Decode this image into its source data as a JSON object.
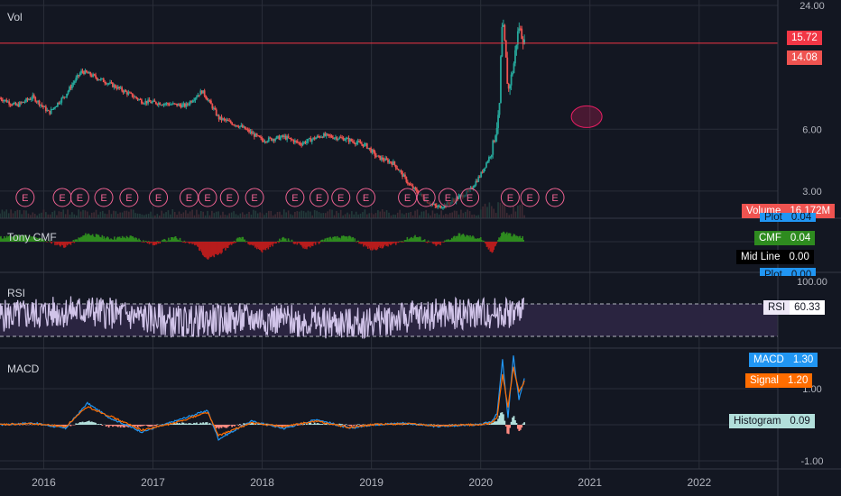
{
  "panes": {
    "vol": {
      "title": "Vol"
    },
    "cmf": {
      "title": "Tony CMF"
    },
    "rsi": {
      "title": "RSI"
    },
    "macd": {
      "title": "MACD"
    }
  },
  "price_axis": {
    "vol_ticks": [
      "24.00",
      "6.00",
      "3.00"
    ],
    "rsi_ticks": [
      "100.00"
    ],
    "macd_ticks": [
      "1.00",
      "-1.00"
    ]
  },
  "tags": {
    "last_price": "15.72",
    "high_price": "14.08",
    "volume": {
      "label": "Volume",
      "value": "16.172M"
    },
    "cmf_plot_top": {
      "label": "Plot",
      "value": "0.04"
    },
    "cmf": {
      "label": "CMF",
      "value": "0.04"
    },
    "mid_line": {
      "label": "Mid Line",
      "value": "0.00"
    },
    "cmf_plot_bottom": {
      "label": "Plot",
      "value": "0.00"
    },
    "rsi": {
      "label": "RSI",
      "value": "60.33"
    },
    "macd": {
      "label": "MACD",
      "value": "1.30"
    },
    "signal": {
      "label": "Signal",
      "value": "1.20"
    },
    "histogram": {
      "label": "Histogram",
      "value": "0.09"
    }
  },
  "time_axis": [
    "2016",
    "2017",
    "2018",
    "2019",
    "2020",
    "2021",
    "2022"
  ],
  "earnings_marker": "E",
  "colors": {
    "background": "#131722",
    "grid": "#2a2e39",
    "up": "#26a69a",
    "down": "#ef5350",
    "last_price_line": "#f23645",
    "cmf_positive": "#2e8b1f",
    "cmf_negative": "#b71c1c",
    "rsi_line": "#d1c4e9",
    "rsi_band": "#2a2440",
    "macd_line": "#2196f3",
    "signal_line": "#ff6d00",
    "histogram": "#b2dfdb"
  },
  "chart_data": [
    {
      "type": "line",
      "title": "Vol",
      "x": [
        "2015.6",
        "2015.75",
        "2015.9",
        "2016.05",
        "2016.2",
        "2016.35",
        "2016.5",
        "2016.7",
        "2016.9",
        "2017.1",
        "2017.3",
        "2017.45",
        "2017.6",
        "2017.8",
        "2018.0",
        "2018.2",
        "2018.35",
        "2018.55",
        "2018.75",
        "2018.95",
        "2019.05",
        "2019.2",
        "2019.35",
        "2019.5",
        "2019.6",
        "2019.7",
        "2019.8",
        "2019.9",
        "2020.0",
        "2020.1",
        "2020.17",
        "2020.2",
        "2020.25",
        "2020.3",
        "2020.35",
        "2020.4"
      ],
      "values": [
        8.5,
        7.8,
        8.6,
        7.2,
        8.8,
        11.5,
        10.6,
        9.4,
        8.2,
        8.0,
        7.8,
        9.2,
        6.8,
        6.2,
        5.3,
        5.5,
        5.1,
        5.6,
        5.4,
        5.0,
        4.4,
        4.1,
        3.2,
        2.7,
        2.5,
        2.6,
        2.8,
        3.0,
        3.6,
        4.6,
        7.0,
        20.0,
        9.0,
        12.0,
        19.0,
        15.7
      ],
      "ylim": [
        2.4,
        24
      ],
      "scale": "log",
      "ticks": [
        24,
        6,
        3
      ]
    },
    {
      "type": "area",
      "title": "Tony CMF",
      "x": [
        "2015.6",
        "2015.8",
        "2016.0",
        "2016.2",
        "2016.4",
        "2016.6",
        "2016.8",
        "2017.0",
        "2017.2",
        "2017.4",
        "2017.5",
        "2017.6",
        "2017.8",
        "2018.0",
        "2018.2",
        "2018.4",
        "2018.6",
        "2018.8",
        "2019.0",
        "2019.2",
        "2019.4",
        "2019.6",
        "2019.8",
        "2020.0",
        "2020.1",
        "2020.2",
        "2020.3",
        "2020.4"
      ],
      "values": [
        0.05,
        0.08,
        0.02,
        -0.06,
        0.1,
        0.04,
        0.06,
        -0.03,
        0.05,
        -0.05,
        -0.22,
        -0.16,
        0.06,
        -0.12,
        0.05,
        -0.08,
        0.04,
        0.06,
        -0.1,
        -0.03,
        0.07,
        -0.05,
        0.09,
        0.04,
        -0.14,
        0.12,
        0.08,
        0.04
      ],
      "ylim": [
        -0.3,
        0.3
      ]
    },
    {
      "type": "line",
      "title": "RSI",
      "x": [
        "2015.6",
        "2016.4",
        "2017.2",
        "2018.0",
        "2018.8",
        "2019.6",
        "2020.4"
      ],
      "values": [
        55,
        62,
        48,
        52,
        45,
        58,
        60.33
      ],
      "ylim": [
        20,
        100
      ],
      "bands": [
        30,
        70
      ]
    },
    {
      "type": "line",
      "title": "MACD",
      "x": [
        "2015.6",
        "2015.9",
        "2016.2",
        "2016.4",
        "2016.6",
        "2016.9",
        "2017.2",
        "2017.5",
        "2017.6",
        "2017.9",
        "2018.2",
        "2018.5",
        "2018.8",
        "2019.0",
        "2019.3",
        "2019.6",
        "2019.9",
        "2020.0",
        "2020.1",
        "2020.15",
        "2020.2",
        "2020.25",
        "2020.3",
        "2020.35",
        "2020.4"
      ],
      "series": [
        {
          "name": "MACD",
          "values": [
            0.0,
            0.05,
            -0.1,
            0.6,
            0.2,
            -0.2,
            0.1,
            0.4,
            -0.4,
            0.1,
            -0.1,
            0.15,
            -0.1,
            0.0,
            0.05,
            -0.05,
            0.0,
            0.0,
            0.1,
            0.3,
            1.8,
            0.2,
            1.9,
            0.7,
            1.3
          ]
        },
        {
          "name": "Signal",
          "values": [
            0.0,
            0.03,
            -0.05,
            0.5,
            0.25,
            -0.15,
            0.05,
            0.35,
            -0.3,
            0.05,
            -0.05,
            0.1,
            -0.08,
            0.0,
            0.03,
            -0.03,
            0.0,
            0.0,
            0.05,
            0.2,
            1.4,
            0.5,
            1.6,
            0.9,
            1.2
          ]
        }
      ],
      "histogram": [
        0.0,
        0.02,
        -0.05,
        0.1,
        -0.05,
        -0.05,
        0.05,
        0.05,
        -0.1,
        0.05,
        -0.05,
        0.05,
        -0.02,
        0.0,
        0.02,
        -0.02,
        0.0,
        0.0,
        0.05,
        0.1,
        0.4,
        -0.3,
        0.3,
        -0.2,
        0.09
      ],
      "ylim": [
        -1,
        2
      ],
      "ticks": [
        1,
        -1
      ]
    }
  ]
}
